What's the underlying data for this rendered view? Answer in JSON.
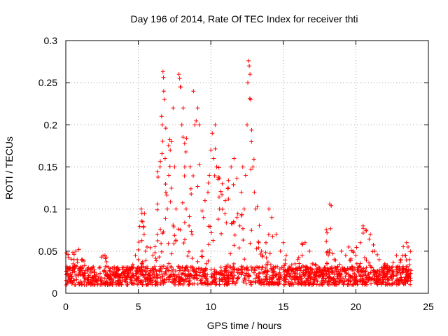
{
  "chart_data": {
    "type": "scatter",
    "title": "Day 196 of 2014, Rate Of TEC Index for receiver thti",
    "xlabel": "GPS time / hours",
    "ylabel": "ROTI / TECUs",
    "xlim": [
      0,
      25
    ],
    "ylim": [
      0,
      0.3
    ],
    "xticks": [
      0,
      5,
      10,
      15,
      20,
      25
    ],
    "xtick_labels": [
      "0",
      "5",
      "10",
      "15",
      "20",
      "25"
    ],
    "yticks": [
      0,
      0.05,
      0.1,
      0.15,
      0.2,
      0.25,
      0.3
    ],
    "ytick_labels": [
      "0",
      "0.05",
      "0.1",
      "0.15",
      "0.2",
      "0.25",
      "0.3"
    ],
    "grid": true,
    "marker": "+",
    "marker_color": "#ff0000",
    "series": [
      {
        "name": "ROTI",
        "points": [
          [
            0.05,
            0.048
          ],
          [
            0.15,
            0.046
          ],
          [
            0.3,
            0.03
          ],
          [
            0.5,
            0.035
          ],
          [
            0.7,
            0.05
          ],
          [
            0.9,
            0.052
          ],
          [
            1.1,
            0.04
          ],
          [
            1.3,
            0.033
          ],
          [
            1.6,
            0.028
          ],
          [
            2.0,
            0.025
          ],
          [
            2.3,
            0.03
          ],
          [
            2.7,
            0.045
          ],
          [
            2.8,
            0.043
          ],
          [
            3.2,
            0.03
          ],
          [
            3.6,
            0.027
          ],
          [
            4.0,
            0.025
          ],
          [
            4.5,
            0.03
          ],
          [
            4.8,
            0.045
          ],
          [
            5.0,
            0.04
          ],
          [
            5.2,
            0.1
          ],
          [
            5.25,
            0.095
          ],
          [
            5.3,
            0.085
          ],
          [
            5.35,
            0.078
          ],
          [
            5.4,
            0.07
          ],
          [
            5.5,
            0.05
          ],
          [
            5.6,
            0.055
          ],
          [
            6.0,
            0.045
          ],
          [
            6.3,
            0.07
          ],
          [
            6.5,
            0.15
          ],
          [
            6.6,
            0.21
          ],
          [
            6.65,
            0.2
          ],
          [
            6.7,
            0.263
          ],
          [
            6.75,
            0.24
          ],
          [
            6.8,
            0.23
          ],
          [
            6.85,
            0.16
          ],
          [
            6.9,
            0.12
          ],
          [
            7.0,
            0.1
          ],
          [
            7.1,
            0.14
          ],
          [
            7.2,
            0.17
          ],
          [
            7.3,
            0.18
          ],
          [
            7.4,
            0.22
          ],
          [
            7.5,
            0.15
          ],
          [
            7.6,
            0.1
          ],
          [
            7.8,
            0.26
          ],
          [
            7.85,
            0.255
          ],
          [
            7.9,
            0.245
          ],
          [
            8.0,
            0.2
          ],
          [
            8.1,
            0.22
          ],
          [
            8.2,
            0.15
          ],
          [
            8.3,
            0.1
          ],
          [
            8.5,
            0.08
          ],
          [
            8.7,
            0.07
          ],
          [
            8.8,
            0.24
          ],
          [
            8.9,
            0.2
          ],
          [
            9.1,
            0.22
          ],
          [
            9.2,
            0.2
          ],
          [
            9.4,
            0.05
          ],
          [
            9.5,
            0.09
          ],
          [
            9.6,
            0.11
          ],
          [
            9.8,
            0.12
          ],
          [
            9.9,
            0.14
          ],
          [
            10.0,
            0.17
          ],
          [
            10.1,
            0.19
          ],
          [
            10.2,
            0.16
          ],
          [
            10.3,
            0.2
          ],
          [
            10.4,
            0.15
          ],
          [
            10.6,
            0.1
          ],
          [
            10.8,
            0.13
          ],
          [
            11.0,
            0.11
          ],
          [
            11.2,
            0.125
          ],
          [
            11.4,
            0.15
          ],
          [
            11.6,
            0.16
          ],
          [
            11.8,
            0.09
          ],
          [
            12.0,
            0.08
          ],
          [
            12.1,
            0.12
          ],
          [
            12.2,
            0.15
          ],
          [
            12.3,
            0.1
          ],
          [
            12.4,
            0.14
          ],
          [
            12.5,
            0.2
          ],
          [
            12.55,
            0.25
          ],
          [
            12.6,
            0.276
          ],
          [
            12.65,
            0.27
          ],
          [
            12.7,
            0.26
          ],
          [
            12.75,
            0.23
          ],
          [
            12.8,
            0.18
          ],
          [
            12.9,
            0.15
          ],
          [
            13.0,
            0.12
          ],
          [
            13.1,
            0.1
          ],
          [
            13.3,
            0.06
          ],
          [
            13.5,
            0.05
          ],
          [
            13.8,
            0.06
          ],
          [
            14.0,
            0.1
          ],
          [
            14.2,
            0.09
          ],
          [
            14.5,
            0.07
          ],
          [
            14.8,
            0.05
          ],
          [
            15.0,
            0.06
          ],
          [
            15.2,
            0.045
          ],
          [
            15.5,
            0.03
          ],
          [
            15.8,
            0.035
          ],
          [
            16.0,
            0.04
          ],
          [
            16.3,
            0.045
          ],
          [
            16.5,
            0.06
          ],
          [
            16.8,
            0.05
          ],
          [
            17.0,
            0.035
          ],
          [
            17.5,
            0.03
          ],
          [
            18.0,
            0.035
          ],
          [
            18.2,
            0.106
          ],
          [
            18.3,
            0.104
          ],
          [
            18.5,
            0.04
          ],
          [
            19.0,
            0.05
          ],
          [
            19.3,
            0.045
          ],
          [
            19.5,
            0.055
          ],
          [
            19.8,
            0.05
          ],
          [
            20.0,
            0.045
          ],
          [
            20.3,
            0.06
          ],
          [
            20.5,
            0.08
          ],
          [
            20.7,
            0.075
          ],
          [
            21.0,
            0.07
          ],
          [
            21.3,
            0.05
          ],
          [
            21.6,
            0.04
          ],
          [
            22.0,
            0.035
          ],
          [
            22.4,
            0.03
          ],
          [
            22.8,
            0.045
          ],
          [
            23.1,
            0.04
          ],
          [
            23.4,
            0.045
          ],
          [
            23.5,
            0.06
          ],
          [
            23.6,
            0.055
          ],
          [
            23.7,
            0.04
          ]
        ]
      }
    ]
  }
}
